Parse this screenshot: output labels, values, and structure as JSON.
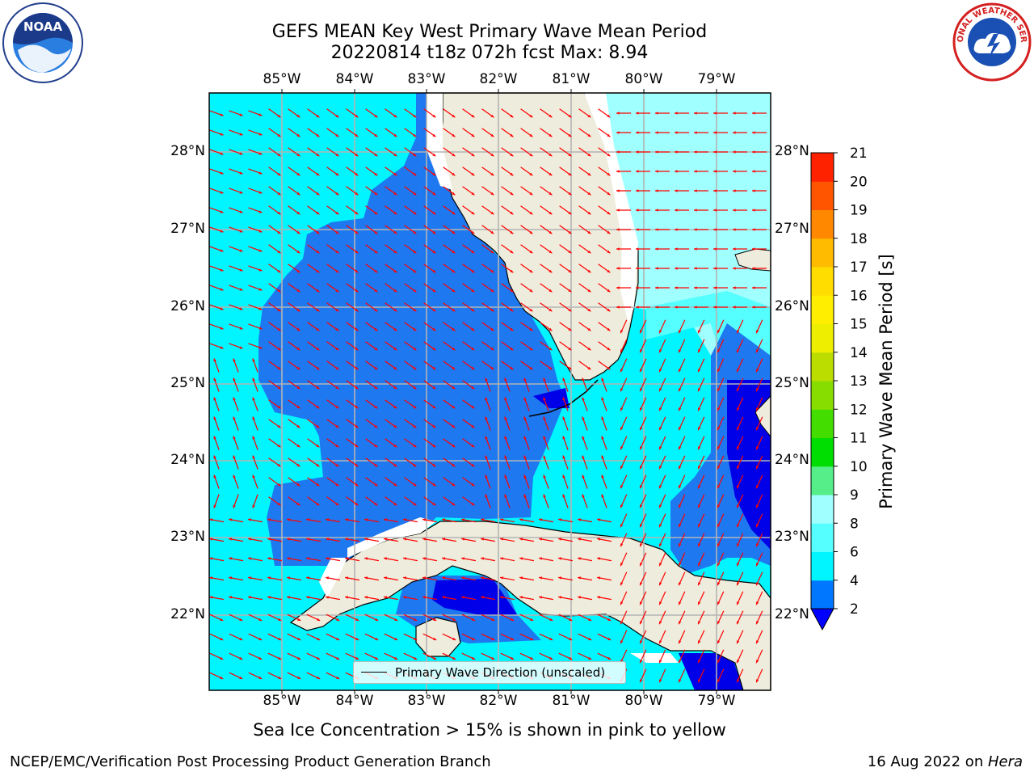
{
  "title": {
    "line1": "GEFS MEAN Key West Primary Wave Mean Period",
    "line2": "20220814 t18z 072h fcst   Max: 8.94"
  },
  "map": {
    "lon_labels": [
      "85°W",
      "84°W",
      "83°W",
      "82°W",
      "81°W",
      "80°W",
      "79°W"
    ],
    "lat_labels": [
      "28°N",
      "27°N",
      "26°N",
      "25°N",
      "24°N",
      "23°N",
      "22°N"
    ],
    "legend_label": "Primary Wave Direction (unscaled)",
    "colors": {
      "land": "#eeecdc",
      "arrow": "#ff0000",
      "grid": "#b4b4b4"
    }
  },
  "colorbar": {
    "label": "Primary Wave Mean Period [s]",
    "ticks": [
      "2",
      "4",
      "6",
      "8",
      "9",
      "10",
      "11",
      "12",
      "13",
      "14",
      "15",
      "16",
      "17",
      "18",
      "19",
      "20",
      "21"
    ],
    "colors": [
      "#0000ff",
      "#0077ff",
      "#00f5ff",
      "#55ffff",
      "#a0ffff",
      "#55ee88",
      "#00dd00",
      "#44dd00",
      "#88dd00",
      "#bbdd00",
      "#eeee00",
      "#ffee00",
      "#ffdd00",
      "#ffbb00",
      "#ff8800",
      "#ff5500",
      "#ff2200",
      "#ff0000"
    ]
  },
  "footer": {
    "note": "Sea Ice Concentration > 15% is shown in pink to yellow",
    "left": "NCEP/EMC/Verification Post Processing Product Generation Branch",
    "date": "16 Aug 2022 on ",
    "machine": "Hera"
  },
  "logos": {
    "noaa_text": "NOAA",
    "nws_text": "NATIONAL WEATHER SERVICE"
  }
}
